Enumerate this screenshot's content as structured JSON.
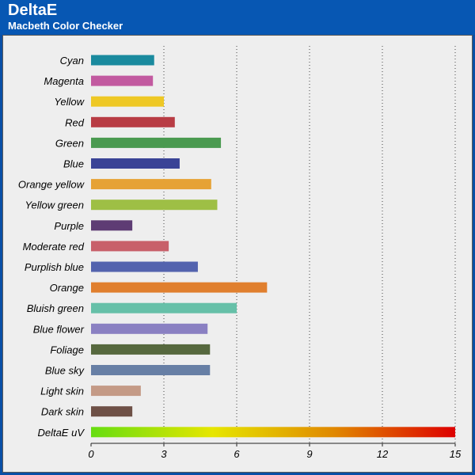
{
  "header": {
    "title": "DeltaE",
    "subtitle": "Macbeth Color Checker"
  },
  "chart_data": {
    "type": "bar",
    "orientation": "horizontal",
    "title": "DeltaE",
    "subtitle": "Macbeth Color Checker",
    "xlabel": "",
    "ylabel": "",
    "xlim": [
      0,
      15
    ],
    "x_ticks": [
      0,
      3,
      6,
      9,
      12,
      15
    ],
    "grid": "vertical dotted",
    "legend": "none",
    "categories": [
      "Cyan",
      "Magenta",
      "Yellow",
      "Red",
      "Green",
      "Blue",
      "Orange yellow",
      "Yellow green",
      "Purple",
      "Moderate red",
      "Purplish blue",
      "Orange",
      "Bluish green",
      "Blue flower",
      "Foliage",
      "Blue sky",
      "Light skin",
      "Dark skin",
      "DeltaE uV"
    ],
    "values": [
      2.6,
      2.55,
      3.0,
      3.45,
      5.35,
      3.65,
      4.95,
      5.2,
      1.7,
      3.2,
      4.4,
      7.25,
      6.0,
      4.8,
      4.9,
      4.9,
      2.05,
      1.7,
      15.0
    ],
    "colors": [
      "#1a8a9e",
      "#c25aa0",
      "#eec825",
      "#b83c44",
      "#4a9a50",
      "#3a4396",
      "#e6a235",
      "#9ebf45",
      "#5e3c74",
      "#c8606a",
      "#5363ae",
      "#e07f2e",
      "#66c0a8",
      "#8a80c2",
      "#56683e",
      "#677fa5",
      "#c49a86",
      "#6e5046",
      "gradient"
    ],
    "gradient_colors": [
      "#66dd11",
      "#e6e600",
      "#e08800",
      "#dd0000"
    ]
  }
}
